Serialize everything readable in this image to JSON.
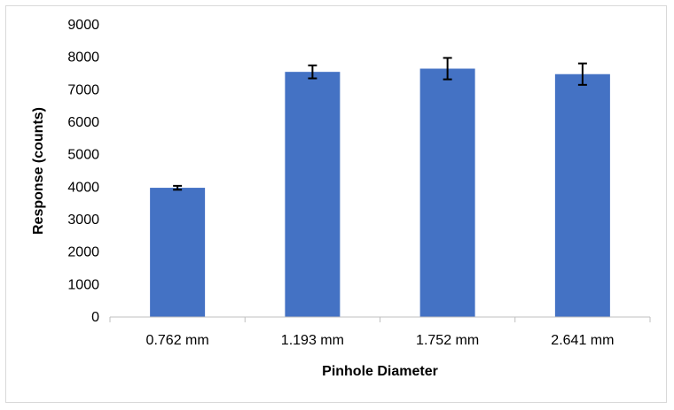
{
  "chart_data": {
    "type": "bar",
    "title": "",
    "xlabel": "Pinhole Diameter",
    "ylabel": "Response (counts)",
    "categories": [
      "0.762 mm",
      "1.193 mm",
      "1.752 mm",
      "2.641 mm"
    ],
    "values": [
      3980,
      7550,
      7650,
      7480
    ],
    "error_bars": [
      60,
      200,
      330,
      330
    ],
    "ylim": [
      0,
      9000
    ],
    "yticks": [
      "0",
      "1000",
      "2000",
      "3000",
      "4000",
      "5000",
      "6000",
      "7000",
      "8000",
      "9000"
    ],
    "grid": false,
    "legend": "none",
    "bar_color": "#4472C4",
    "error_bar_color": "#000000"
  }
}
